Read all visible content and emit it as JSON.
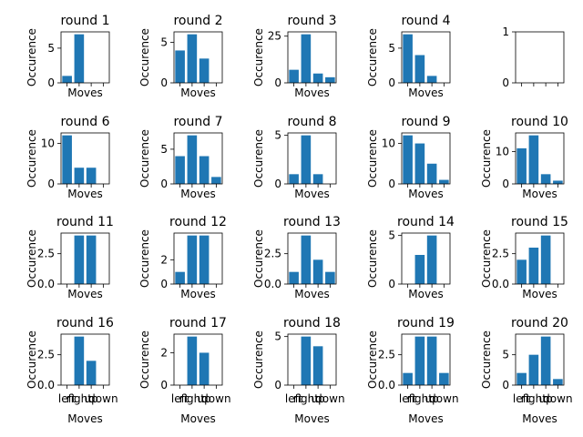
{
  "chart_data": {
    "type": "bar",
    "categories": [
      "left",
      "right",
      "up",
      "down"
    ],
    "xlabel": "Moves",
    "ylabel": "Occurence",
    "bar_color": "#1f77b4",
    "subplots": [
      {
        "title": "round 1",
        "values": [
          1,
          7,
          0,
          0
        ],
        "ylim": [
          0,
          7.35
        ],
        "yticks": [
          "0",
          "5"
        ]
      },
      {
        "title": "round 2",
        "values": [
          4,
          6,
          3,
          0
        ],
        "ylim": [
          0,
          6.3
        ],
        "yticks": [
          "0",
          "5"
        ]
      },
      {
        "title": "round 3",
        "values": [
          7,
          26,
          5,
          3
        ],
        "ylim": [
          0,
          27.3
        ],
        "yticks": [
          "0",
          "25"
        ]
      },
      {
        "title": "round 4",
        "values": [
          7,
          4,
          1,
          0
        ],
        "ylim": [
          0,
          7.35
        ],
        "yticks": [
          "0",
          "5"
        ]
      },
      {
        "title": "",
        "values": [],
        "ylim": [
          0,
          1
        ],
        "yticks": [
          "0",
          "1"
        ]
      },
      {
        "title": "round 6",
        "values": [
          12,
          4,
          4,
          0
        ],
        "ylim": [
          0,
          12.6
        ],
        "yticks": [
          "0",
          "10"
        ]
      },
      {
        "title": "round 7",
        "values": [
          4,
          7,
          4,
          1
        ],
        "ylim": [
          0,
          7.35
        ],
        "yticks": [
          "0",
          "5"
        ]
      },
      {
        "title": "round 8",
        "values": [
          1,
          5,
          1,
          0
        ],
        "ylim": [
          0,
          5.25
        ],
        "yticks": [
          "0",
          "5"
        ]
      },
      {
        "title": "round 9",
        "values": [
          12,
          10,
          5,
          1
        ],
        "ylim": [
          0,
          12.6
        ],
        "yticks": [
          "0",
          "10"
        ]
      },
      {
        "title": "round 10",
        "values": [
          11,
          15,
          3,
          1
        ],
        "ylim": [
          0,
          15.75
        ],
        "yticks": [
          "0",
          "10"
        ]
      },
      {
        "title": "round 11",
        "values": [
          0,
          4,
          4,
          0
        ],
        "ylim": [
          0,
          4.2
        ],
        "yticks": [
          "0.0",
          "2.5"
        ]
      },
      {
        "title": "round 12",
        "values": [
          1,
          4,
          4,
          0
        ],
        "ylim": [
          0,
          4.2
        ],
        "yticks": [
          "0",
          "2"
        ]
      },
      {
        "title": "round 13",
        "values": [
          1,
          4,
          2,
          1
        ],
        "ylim": [
          0,
          4.2
        ],
        "yticks": [
          "0.0",
          "2.5"
        ]
      },
      {
        "title": "round 14",
        "values": [
          0,
          3,
          5,
          0
        ],
        "ylim": [
          0,
          5.25
        ],
        "yticks": [
          "0",
          "5"
        ]
      },
      {
        "title": "round 15",
        "values": [
          2,
          3,
          4,
          0
        ],
        "ylim": [
          0,
          4.2
        ],
        "yticks": [
          "0.0",
          "2.5"
        ]
      },
      {
        "title": "round 16",
        "values": [
          0,
          4,
          2,
          0
        ],
        "ylim": [
          0,
          4.2
        ],
        "yticks": [
          "0.0",
          "2.5"
        ]
      },
      {
        "title": "round 17",
        "values": [
          0,
          3,
          2,
          0
        ],
        "ylim": [
          0,
          3.15
        ],
        "yticks": [
          "0",
          "2"
        ]
      },
      {
        "title": "round 18",
        "values": [
          0,
          5,
          4,
          0
        ],
        "ylim": [
          0,
          5.25
        ],
        "yticks": [
          "0",
          "5"
        ]
      },
      {
        "title": "round 19",
        "values": [
          1,
          4,
          4,
          1
        ],
        "ylim": [
          0,
          4.2
        ],
        "yticks": [
          "0.0",
          "2.5"
        ]
      },
      {
        "title": "round 20",
        "values": [
          2,
          5,
          8,
          1
        ],
        "ylim": [
          0,
          8.4
        ],
        "yticks": [
          "0",
          "5"
        ]
      }
    ]
  }
}
